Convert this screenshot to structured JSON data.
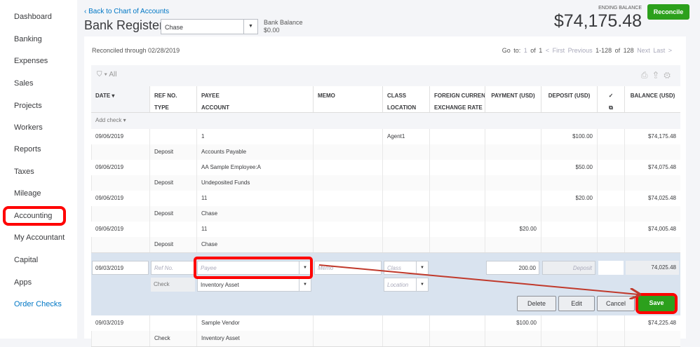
{
  "sidebar": {
    "items": [
      "Dashboard",
      "Banking",
      "Expenses",
      "Sales",
      "Projects",
      "Workers",
      "Reports",
      "Taxes",
      "Mileage",
      "Accounting",
      "My Accountant",
      "Capital",
      "Apps",
      "Order Checks"
    ]
  },
  "header": {
    "back": "Back to Chart of Accounts",
    "title": "Bank Register",
    "account": "Chase",
    "bank_balance_label": "Bank Balance",
    "bank_balance": "$0.00",
    "ending_label": "ENDING BALANCE",
    "ending_balance": "$74,175.48",
    "reconcile": "Reconcile"
  },
  "reconciled": "Reconciled through 02/28/2019",
  "pager": {
    "goto": "Go to:",
    "page": "1",
    "of": "of 1",
    "first": "< First",
    "previous": "Previous",
    "range": "1-128 of 128",
    "next": "Next",
    "last": "Last >"
  },
  "filter": "All",
  "columns": [
    [
      "DATE ▾",
      ""
    ],
    [
      "REF NO.",
      "TYPE"
    ],
    [
      "PAYEE",
      "ACCOUNT"
    ],
    [
      "MEMO",
      ""
    ],
    [
      "CLASS",
      "LOCATION"
    ],
    [
      "FOREIGN CURRENCY",
      "EXCHANGE RATE"
    ],
    [
      "PAYMENT (USD)",
      ""
    ],
    [
      "DEPOSIT (USD)",
      ""
    ],
    [
      "✓",
      "⧉"
    ],
    [
      "BALANCE (USD)",
      ""
    ]
  ],
  "add_check": "Add check ▾",
  "rows": [
    {
      "date": "09/06/2019",
      "payee": "1",
      "class": "Agent1",
      "payment": "",
      "deposit": "$100.00",
      "balance": "$74,175.48",
      "type": "Deposit",
      "account": "Accounts Payable"
    },
    {
      "date": "09/06/2019",
      "payee": "AA Sample Employee:A",
      "class": "",
      "payment": "",
      "deposit": "$50.00",
      "balance": "$74,075.48",
      "type": "Deposit",
      "account": "Undeposited Funds"
    },
    {
      "date": "09/06/2019",
      "payee": "11",
      "class": "",
      "payment": "",
      "deposit": "$20.00",
      "balance": "$74,025.48",
      "type": "Deposit",
      "account": "Chase"
    },
    {
      "date": "09/06/2019",
      "payee": "11",
      "class": "",
      "payment": "$20.00",
      "deposit": "",
      "balance": "$74,005.48",
      "type": "Deposit",
      "account": "Chase"
    }
  ],
  "edit": {
    "date": "09/03/2019",
    "ref_ph": "Ref No.",
    "payee_ph": "Payee",
    "memo_ph": "Memo",
    "class_ph": "Class",
    "payment": "200.00",
    "deposit_ph": "Deposit",
    "balance": "74,025.48",
    "type": "Check",
    "account": "Inventory Asset",
    "location_ph": "Location",
    "delete": "Delete",
    "edit": "Edit",
    "cancel": "Cancel",
    "save": "Save"
  },
  "last_row": {
    "date": "09/03/2019",
    "payee": "Sample Vendor",
    "payment": "$100.00",
    "balance": "$74,225.48",
    "type": "Check",
    "account": "Inventory Asset"
  },
  "colors": {
    "accent": "#2ca01c",
    "link": "#0077c5",
    "annotation": "#ff0000"
  }
}
